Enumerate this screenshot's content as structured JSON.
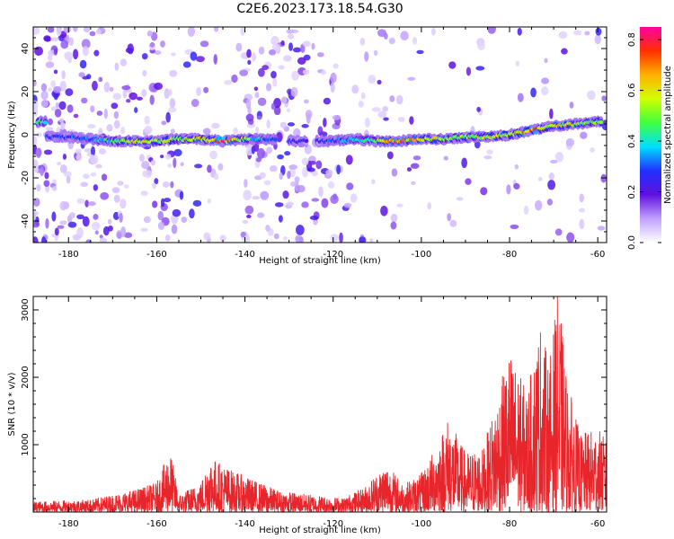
{
  "title": "C2E6.2023.173.18.54.G30",
  "chart_data": [
    {
      "type": "heatmap",
      "xlabel": "Height of straight line (km)",
      "ylabel": "Frequency (Hz)",
      "xlim": [
        -188,
        -58
      ],
      "ylim": [
        -50,
        50
      ],
      "xticks": [
        "-180",
        "-160",
        "-140",
        "-120",
        "-100",
        "-80",
        "-60"
      ],
      "yticks": [
        "-40",
        "-20",
        "0",
        "20",
        "40"
      ],
      "ridge": [
        {
          "x": -185,
          "y": -1,
          "amp": 0.3
        },
        {
          "x": -180,
          "y": -1,
          "amp": 0.3
        },
        {
          "x": -175,
          "y": -2,
          "amp": 0.32
        },
        {
          "x": -170,
          "y": -3,
          "amp": 0.45
        },
        {
          "x": -165,
          "y": -3,
          "amp": 0.6
        },
        {
          "x": -160,
          "y": -3,
          "amp": 0.55
        },
        {
          "x": -155,
          "y": -2,
          "amp": 0.55
        },
        {
          "x": -150,
          "y": -2,
          "amp": 0.6
        },
        {
          "x": -145,
          "y": -3,
          "amp": 0.8
        },
        {
          "x": -140,
          "y": -2,
          "amp": 0.55
        },
        {
          "x": -135,
          "y": -2,
          "amp": 0.3
        },
        {
          "x": -128,
          "y": -3,
          "amp": 0.25
        },
        {
          "x": -122,
          "y": -3,
          "amp": 0.28
        },
        {
          "x": -115,
          "y": -2,
          "amp": 0.4
        },
        {
          "x": -110,
          "y": -3,
          "amp": 0.55
        },
        {
          "x": -105,
          "y": -3,
          "amp": 0.75
        },
        {
          "x": -100,
          "y": -2,
          "amp": 0.6
        },
        {
          "x": -95,
          "y": -2,
          "amp": 0.55
        },
        {
          "x": -90,
          "y": -1,
          "amp": 0.5
        },
        {
          "x": -85,
          "y": -1,
          "amp": 0.55
        },
        {
          "x": -80,
          "y": 0,
          "amp": 0.6
        },
        {
          "x": -75,
          "y": 2,
          "amp": 0.75
        },
        {
          "x": -70,
          "y": 4,
          "amp": 0.6
        },
        {
          "x": -65,
          "y": 5,
          "amp": 0.55
        },
        {
          "x": -60,
          "y": 6,
          "amp": 0.5
        }
      ],
      "colorbar": {
        "label": "Normalized spectral amplitude",
        "range": [
          0,
          0.85
        ],
        "ticks": [
          "0.0",
          "0.2",
          "0.4",
          "0.6",
          "0.8"
        ],
        "colors": [
          "#ffffff",
          "#c0a0ff",
          "#6010e0",
          "#2030ff",
          "#00e0ff",
          "#40ff40",
          "#d0ff00",
          "#ffb000",
          "#ff3000",
          "#ff00a0"
        ]
      }
    },
    {
      "type": "line",
      "xlabel": "Height of straight line (km)",
      "ylabel": "SNR (10 * v/v)",
      "xlim": [
        -188,
        -58
      ],
      "ylim": [
        0,
        3200
      ],
      "xticks": [
        "-180",
        "-160",
        "-140",
        "-120",
        "-100",
        "-80",
        "-60"
      ],
      "yticks": [
        "1000",
        "2000",
        "3000"
      ],
      "color": "#e8252a",
      "envelope": [
        {
          "x": -188,
          "y": 150
        },
        {
          "x": -175,
          "y": 180
        },
        {
          "x": -165,
          "y": 320
        },
        {
          "x": -160,
          "y": 420
        },
        {
          "x": -157,
          "y": 900
        },
        {
          "x": -155,
          "y": 250
        },
        {
          "x": -150,
          "y": 420
        },
        {
          "x": -148,
          "y": 800
        },
        {
          "x": -143,
          "y": 600
        },
        {
          "x": -138,
          "y": 450
        },
        {
          "x": -132,
          "y": 300
        },
        {
          "x": -125,
          "y": 250
        },
        {
          "x": -118,
          "y": 200
        },
        {
          "x": -113,
          "y": 350
        },
        {
          "x": -108,
          "y": 700
        },
        {
          "x": -104,
          "y": 400
        },
        {
          "x": -100,
          "y": 550
        },
        {
          "x": -97,
          "y": 900
        },
        {
          "x": -94,
          "y": 1350
        },
        {
          "x": -90,
          "y": 850
        },
        {
          "x": -86,
          "y": 900
        },
        {
          "x": -83,
          "y": 1600
        },
        {
          "x": -80,
          "y": 2300
        },
        {
          "x": -76,
          "y": 1700
        },
        {
          "x": -73,
          "y": 2700
        },
        {
          "x": -71,
          "y": 2100
        },
        {
          "x": -69,
          "y": 3150
        },
        {
          "x": -67,
          "y": 1900
        },
        {
          "x": -64,
          "y": 1100
        },
        {
          "x": -60,
          "y": 1200
        },
        {
          "x": -58,
          "y": 1000
        }
      ]
    }
  ]
}
